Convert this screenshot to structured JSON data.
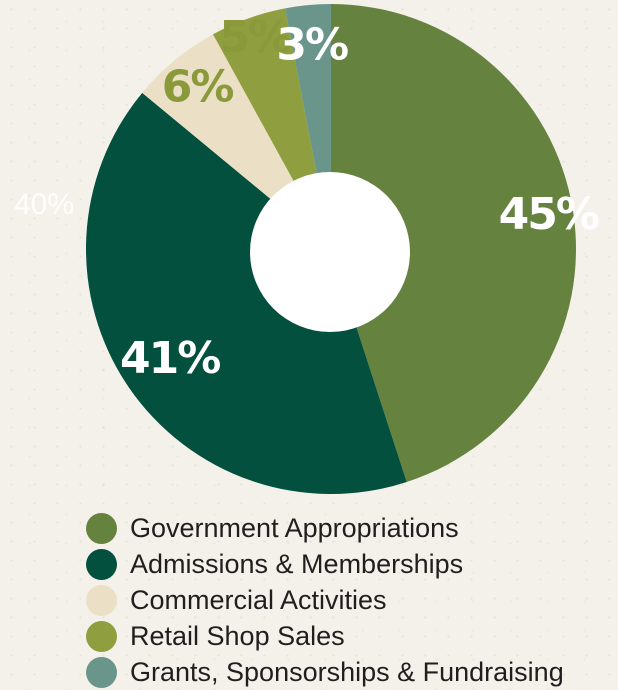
{
  "chart_data": {
    "type": "pie",
    "categories": [
      "Government Appropriations",
      "Admissions & Memberships",
      "Commercial Activities",
      "Retail Shop Sales",
      "Grants, Sponsorships & Fundraising"
    ],
    "values": [
      45,
      41,
      6,
      5,
      3
    ],
    "labels": [
      "45%",
      "41%",
      "6%",
      "5%",
      "3%"
    ],
    "colors": [
      "#66823f",
      "#02503d",
      "#ebe0c5",
      "#8f9e3f",
      "#6a958b"
    ],
    "label_colors": [
      "#ffffff",
      "#ffffff",
      "#8a9a3a",
      "#8a9a3a",
      "#ffffff"
    ],
    "hole": true,
    "legend_placement": "bottom",
    "annotation": "40%"
  }
}
